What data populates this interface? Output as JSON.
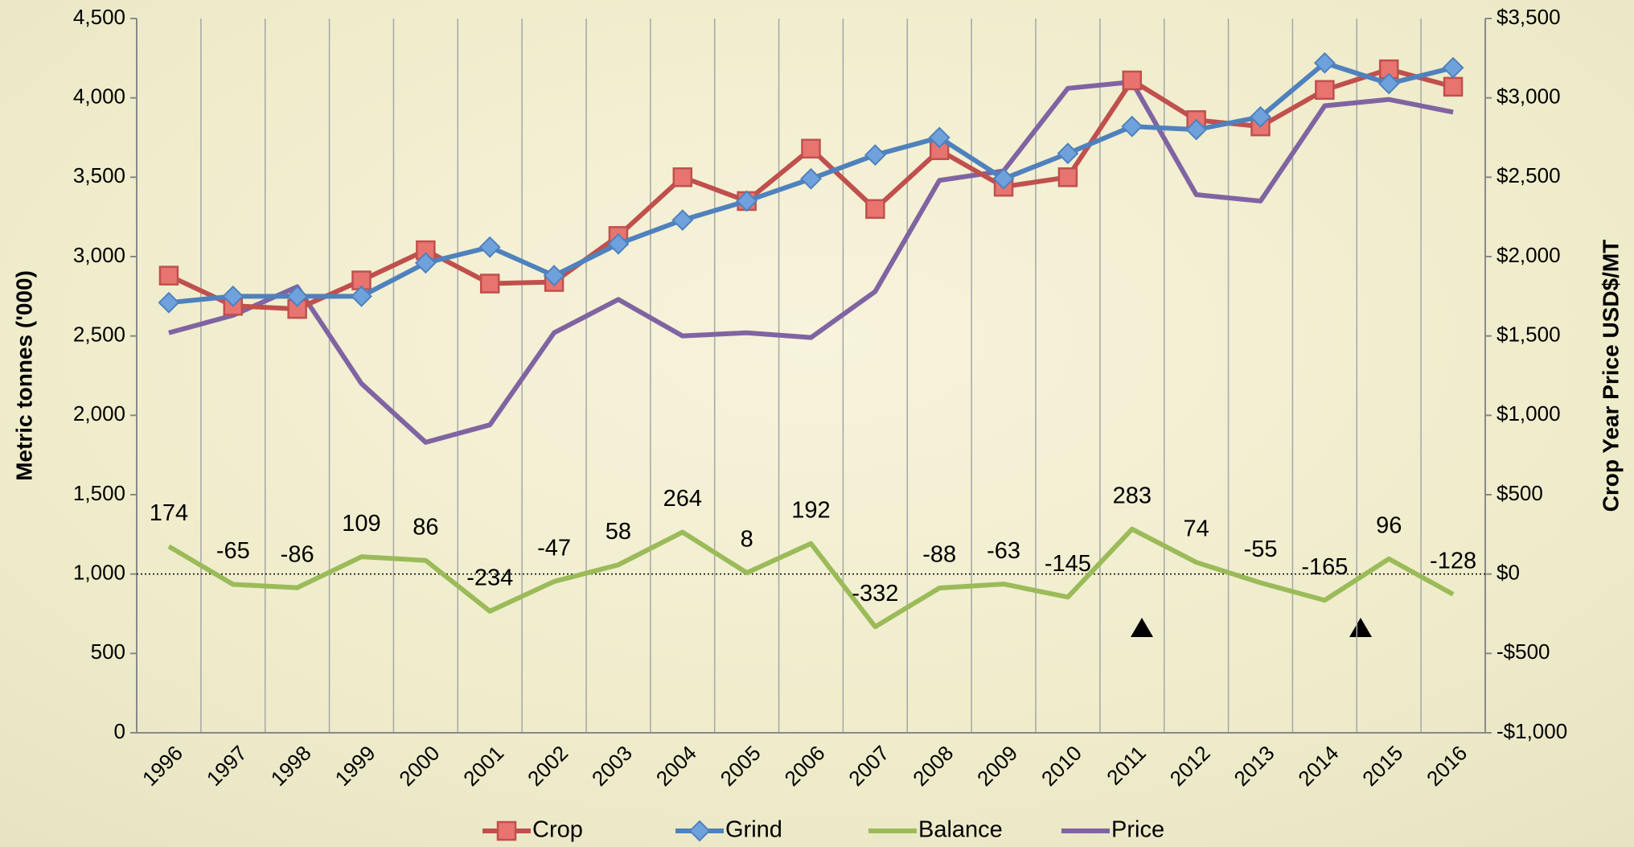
{
  "chart_data": {
    "type": "line",
    "categories": [
      "1996",
      "1997",
      "1998",
      "1999",
      "2000",
      "2001",
      "2002",
      "2003",
      "2004",
      "2005",
      "2006",
      "2007",
      "2008",
      "2009",
      "2010",
      "2011",
      "2012",
      "2013",
      "2014",
      "2015",
      "2016"
    ],
    "series": [
      {
        "name": "Crop",
        "color": "#c0504d",
        "marker": "square",
        "values": [
          2880,
          2690,
          2670,
          2850,
          3040,
          2830,
          2840,
          3130,
          3500,
          3350,
          3680,
          3300,
          3670,
          3440,
          3500,
          4110,
          3860,
          3820,
          4050,
          4180,
          4070
        ]
      },
      {
        "name": "Grind",
        "color": "#4f81bd",
        "marker": "diamond",
        "values": [
          2710,
          2750,
          2750,
          2750,
          2960,
          3060,
          2880,
          3080,
          3230,
          3350,
          3490,
          3640,
          3750,
          3490,
          3650,
          3820,
          3800,
          3880,
          4220,
          4090,
          4190
        ]
      },
      {
        "name": "Balance",
        "color": "#9bbb59",
        "axis": "y2",
        "data_labels": true,
        "values": [
          174,
          -65,
          -86,
          109,
          86,
          -234,
          -47,
          58,
          264,
          8,
          192,
          -332,
          -88,
          -63,
          -145,
          283,
          74,
          -55,
          -165,
          96,
          -128
        ]
      },
      {
        "name": "Price",
        "color": "#8064a2",
        "axis": "y2",
        "values": [
          1520,
          1630,
          1810,
          1200,
          830,
          940,
          1520,
          1730,
          1500,
          1520,
          1490,
          1780,
          2480,
          2540,
          3060,
          3100,
          2390,
          2350,
          2950,
          2990,
          2910
        ]
      }
    ],
    "ylabel": "Metric tonnes ('000)",
    "y2label": "Crop Year Price USD$/MT",
    "ylim": [
      0,
      4500
    ],
    "yticks": [
      0,
      500,
      {
        "value": 1000,
        "label": "1,000"
      },
      {
        "value": 1500,
        "label": "1,500"
      },
      {
        "value": 2000,
        "label": "2,000"
      },
      {
        "value": 2500,
        "label": "2,500"
      },
      {
        "value": 3000,
        "label": "3,000"
      },
      {
        "value": 3500,
        "label": "3,500"
      },
      {
        "value": 4000,
        "label": "4,000"
      },
      {
        "value": 4500,
        "label": "4,500"
      }
    ],
    "y2lim": [
      -1000,
      3500
    ],
    "y2ticks": [
      {
        "value": -1000,
        "label": "-$1,000"
      },
      {
        "value": -500,
        "label": "-$500"
      },
      {
        "value": 0,
        "label": "$0"
      },
      {
        "value": 500,
        "label": "$500"
      },
      {
        "value": 1000,
        "label": "$1,000"
      },
      {
        "value": 1500,
        "label": "$1,500"
      },
      {
        "value": 2000,
        "label": "$2,000"
      },
      {
        "value": 2500,
        "label": "$2,500"
      },
      {
        "value": 3000,
        "label": "$3,000"
      },
      {
        "value": 3500,
        "label": "$3,500"
      }
    ],
    "grid": true,
    "legend": "bottom"
  }
}
